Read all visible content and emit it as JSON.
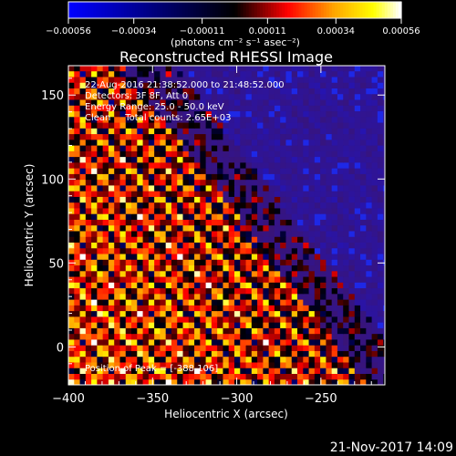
{
  "chart_data": {
    "type": "heatmap",
    "title": "Reconstructed RHESSI Image",
    "xlabel": "Heliocentric X (arcsec)",
    "ylabel": "Heliocentric Y (arcsec)",
    "xlim": [
      -400,
      -212
    ],
    "ylim": [
      -22.6,
      167.5
    ],
    "x_ticks": [
      -400,
      -350,
      -300,
      -250
    ],
    "y_ticks": [
      0,
      50,
      100,
      150
    ],
    "x_tick_labels": [
      "−400",
      "−350",
      "−300",
      "−250"
    ],
    "y_tick_labels": [
      "0",
      "50",
      "100",
      "150"
    ],
    "grid": false,
    "colorbar": {
      "position": "top",
      "colors": [
        "#0000ff",
        "#000000",
        "#ff0000",
        "#ffa500",
        "#ffff00",
        "#ffffff"
      ],
      "range": [
        -0.00056,
        0.00056
      ],
      "tick_values": [
        -0.00056,
        -0.00034,
        -0.00011,
        0.00011,
        0.00034,
        0.00056
      ],
      "tick_labels": [
        "−0.00056",
        "−0.00034",
        "−0.00011",
        "0.00011",
        "0.00034",
        "0.00056"
      ],
      "unit_label": "(photons cm⁻² s⁻¹ asec⁻²)"
    },
    "annotations": [
      "22-Aug-2016 21:38:52.000 to 21:48:52.000",
      "Detectors: 3F 8F, Att 0",
      "Energy Range: 25.0 - 50.0 keV",
      "Clean     Total counts: 2.65E+03"
    ],
    "peak_annotation": "Position of Peak = [-388,106]",
    "peak_position": [
      -388,
      106
    ]
  },
  "footer": {
    "timestamp": "21-Nov-2017 14:09"
  }
}
